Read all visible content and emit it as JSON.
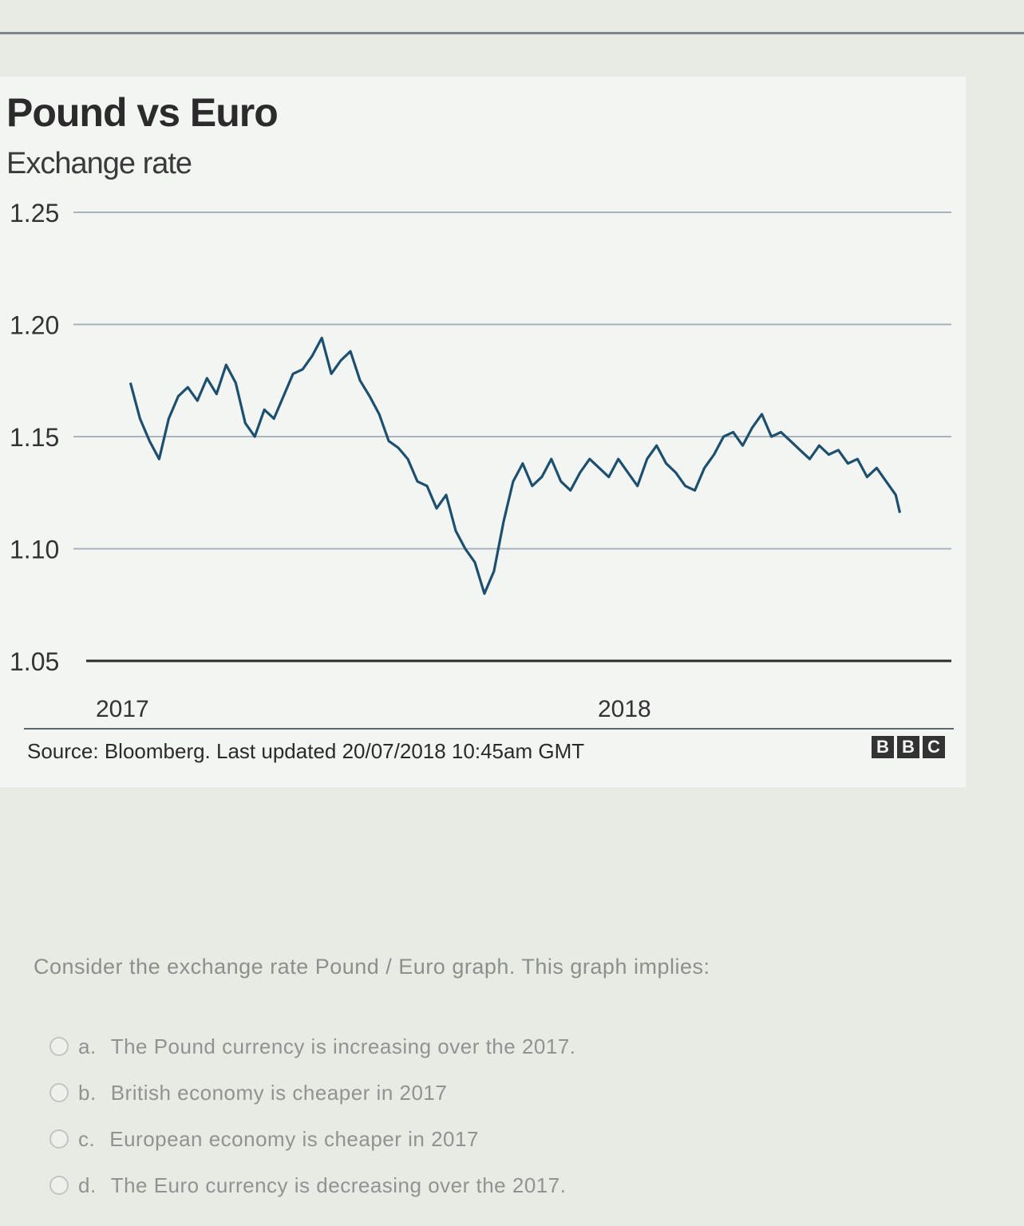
{
  "chart_data": {
    "type": "line",
    "title": "Pound vs Euro",
    "subtitle": "Exchange rate",
    "ylim": [
      1.05,
      1.25
    ],
    "yticks": [
      "1.25",
      "1.20",
      "1.15",
      "1.10",
      "1.05"
    ],
    "xticks": [
      "2017",
      "2018"
    ],
    "color": "#1d4f6e",
    "series": [
      {
        "x": [
          "2017-01-03",
          "2017-01-10",
          "2017-01-17",
          "2017-01-24",
          "2017-01-31",
          "2017-02-07",
          "2017-02-14",
          "2017-02-21",
          "2017-02-28",
          "2017-03-07",
          "2017-03-14",
          "2017-03-21",
          "2017-03-28",
          "2017-04-04",
          "2017-04-11",
          "2017-04-18",
          "2017-04-25",
          "2017-05-02",
          "2017-05-09",
          "2017-05-16",
          "2017-05-23",
          "2017-05-30",
          "2017-06-06",
          "2017-06-13",
          "2017-06-20",
          "2017-06-27",
          "2017-07-04",
          "2017-07-11",
          "2017-07-18",
          "2017-07-25",
          "2017-08-01",
          "2017-08-08",
          "2017-08-15",
          "2017-08-22",
          "2017-08-29",
          "2017-09-05",
          "2017-09-12",
          "2017-09-19",
          "2017-09-26",
          "2017-10-03",
          "2017-10-10",
          "2017-10-17",
          "2017-10-24",
          "2017-10-31",
          "2017-11-07",
          "2017-11-14",
          "2017-11-21",
          "2017-11-28",
          "2017-12-05",
          "2017-12-12",
          "2017-12-19",
          "2017-12-26",
          "2018-01-02",
          "2018-01-09",
          "2018-01-16",
          "2018-01-23",
          "2018-01-30",
          "2018-02-06",
          "2018-02-13",
          "2018-02-20",
          "2018-02-27",
          "2018-03-06",
          "2018-03-13",
          "2018-03-20",
          "2018-03-27",
          "2018-04-03",
          "2018-04-10",
          "2018-04-17",
          "2018-04-24",
          "2018-05-01",
          "2018-05-08",
          "2018-05-15",
          "2018-05-22",
          "2018-05-29",
          "2018-06-05",
          "2018-06-12",
          "2018-06-19",
          "2018-06-26",
          "2018-07-03",
          "2018-07-10",
          "2018-07-17",
          "2018-07-20"
        ],
        "values": [
          1.174,
          1.158,
          1.148,
          1.14,
          1.158,
          1.168,
          1.172,
          1.166,
          1.176,
          1.169,
          1.182,
          1.174,
          1.156,
          1.15,
          1.162,
          1.158,
          1.168,
          1.178,
          1.18,
          1.186,
          1.194,
          1.178,
          1.184,
          1.188,
          1.175,
          1.168,
          1.16,
          1.148,
          1.145,
          1.14,
          1.13,
          1.128,
          1.118,
          1.124,
          1.108,
          1.1,
          1.094,
          1.08,
          1.09,
          1.112,
          1.13,
          1.138,
          1.128,
          1.132,
          1.14,
          1.13,
          1.126,
          1.134,
          1.14,
          1.136,
          1.132,
          1.14,
          1.134,
          1.128,
          1.14,
          1.146,
          1.138,
          1.134,
          1.128,
          1.126,
          1.136,
          1.142,
          1.15,
          1.152,
          1.146,
          1.154,
          1.16,
          1.15,
          1.152,
          1.148,
          1.144,
          1.14,
          1.146,
          1.142,
          1.144,
          1.138,
          1.14,
          1.132,
          1.136,
          1.13,
          1.124,
          1.116
        ]
      }
    ]
  },
  "source": "Source: Bloomberg. Last updated 20/07/2018 10:45am GMT",
  "logo": {
    "letters": [
      "B",
      "B",
      "C"
    ]
  },
  "question": "Consider the exchange rate Pound / Euro graph. This graph implies:",
  "options": [
    {
      "letter": "a.",
      "text": "The Pound currency is increasing over the 2017."
    },
    {
      "letter": "b.",
      "text": "British economy is cheaper in 2017"
    },
    {
      "letter": "c.",
      "text": "European economy is cheaper in 2017"
    },
    {
      "letter": "d.",
      "text": "The Euro currency is decreasing over the 2017."
    }
  ]
}
